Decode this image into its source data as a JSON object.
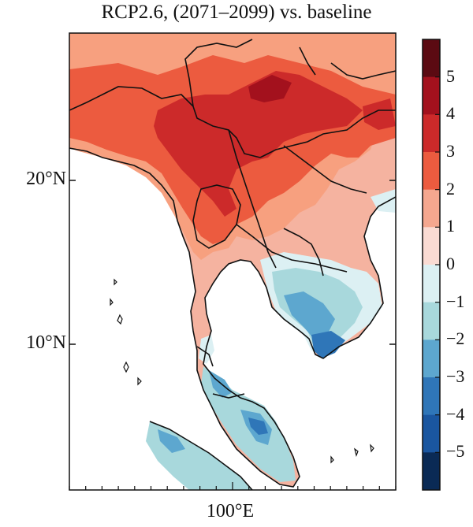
{
  "map": {
    "title": "RCP2.6, (2071–2099) vs. baseline",
    "lat_labels": [
      {
        "text": "20°N",
        "value": 20
      },
      {
        "text": "10°N",
        "value": 10
      }
    ],
    "lon_labels": [
      {
        "text": "100°E",
        "value": 100
      }
    ]
  },
  "colorbar": {
    "labels": [
      "5",
      "4",
      "3",
      "2",
      "1",
      "0",
      "−1",
      "−2",
      "−3",
      "−4",
      "−5"
    ],
    "colors": [
      "#5b0a12",
      "#a3111d",
      "#cc2a2a",
      "#ec5b3f",
      "#f5a78f",
      "#fadbd3",
      "#dcf0f3",
      "#a8d8dc",
      "#5da7cf",
      "#2f76b8",
      "#1a56a0",
      "#0a2a55"
    ]
  }
}
